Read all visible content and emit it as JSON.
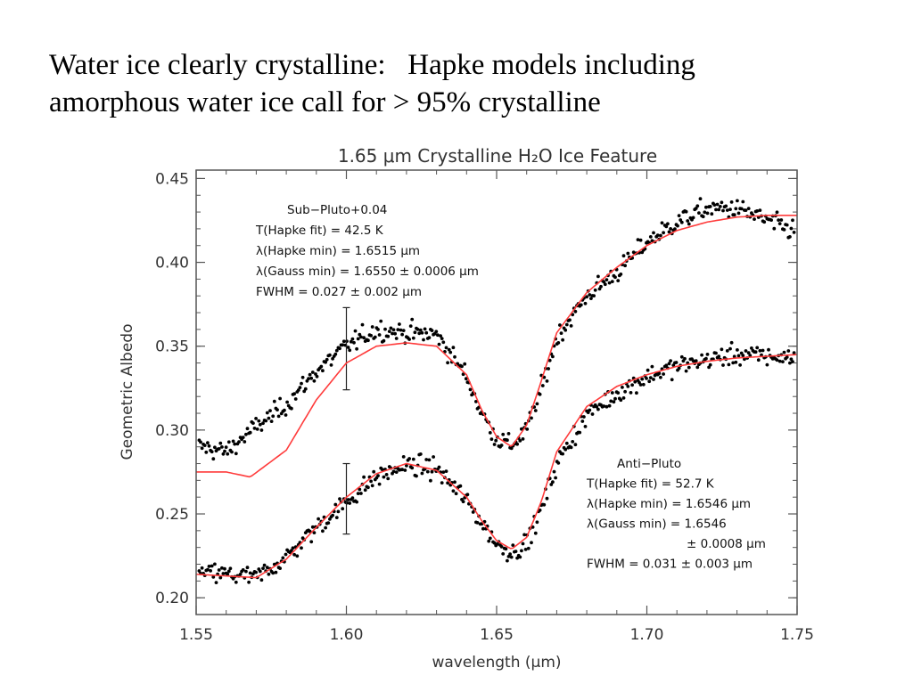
{
  "slide": {
    "title_line1": "Water ice clearly crystalline:   Hapke models including",
    "title_line2": "amorphous water ice call for > 95% crystalline"
  },
  "chart_data": {
    "type": "scatter",
    "title": "1.65 μm Crystalline H₂O Ice Feature",
    "xlabel": "wavelength (μm)",
    "ylabel": "Geometric Albedo",
    "xlim": [
      1.55,
      1.75
    ],
    "ylim": [
      0.19,
      0.455
    ],
    "xticks": [
      "1.55",
      "1.60",
      "1.65",
      "1.70",
      "1.75"
    ],
    "yticks": [
      "0.20",
      "0.25",
      "0.30",
      "0.35",
      "0.40",
      "0.45"
    ],
    "grid": false,
    "colors": {
      "data": "#000000",
      "fit": "#ff3b3b",
      "axes": "#555555"
    },
    "series": [
      {
        "name": "Sub−Pluto+0.04",
        "kind": "observed",
        "x": [
          1.552,
          1.56,
          1.57,
          1.58,
          1.59,
          1.6,
          1.61,
          1.62,
          1.63,
          1.64,
          1.645,
          1.65,
          1.655,
          1.66,
          1.665,
          1.67,
          1.68,
          1.69,
          1.7,
          1.71,
          1.72,
          1.73,
          1.74,
          1.75
        ],
        "y": [
          0.29,
          0.287,
          0.302,
          0.315,
          0.335,
          0.35,
          0.36,
          0.358,
          0.357,
          0.332,
          0.31,
          0.295,
          0.291,
          0.3,
          0.325,
          0.355,
          0.38,
          0.394,
          0.412,
          0.424,
          0.432,
          0.432,
          0.425,
          0.418
        ],
        "error_bar": {
          "x": 1.6,
          "low": 0.324,
          "high": 0.373
        }
      },
      {
        "name": "Sub−Pluto+0.04 Hapke fit",
        "kind": "model",
        "x": [
          1.55,
          1.56,
          1.568,
          1.58,
          1.59,
          1.6,
          1.61,
          1.62,
          1.63,
          1.64,
          1.645,
          1.65,
          1.655,
          1.66,
          1.665,
          1.67,
          1.68,
          1.69,
          1.7,
          1.71,
          1.72,
          1.73,
          1.74,
          1.75
        ],
        "y": [
          0.275,
          0.275,
          0.272,
          0.288,
          0.318,
          0.34,
          0.35,
          0.352,
          0.35,
          0.333,
          0.312,
          0.296,
          0.29,
          0.303,
          0.33,
          0.358,
          0.382,
          0.397,
          0.41,
          0.419,
          0.424,
          0.427,
          0.428,
          0.428
        ]
      },
      {
        "name": "Anti−Pluto",
        "kind": "observed",
        "x": [
          1.55,
          1.56,
          1.57,
          1.58,
          1.59,
          1.6,
          1.61,
          1.62,
          1.63,
          1.64,
          1.645,
          1.65,
          1.655,
          1.66,
          1.665,
          1.67,
          1.68,
          1.69,
          1.7,
          1.71,
          1.72,
          1.73,
          1.74,
          1.75
        ],
        "y": [
          0.215,
          0.214,
          0.212,
          0.224,
          0.242,
          0.257,
          0.272,
          0.279,
          0.277,
          0.258,
          0.245,
          0.232,
          0.227,
          0.232,
          0.253,
          0.28,
          0.309,
          0.322,
          0.332,
          0.338,
          0.342,
          0.345,
          0.344,
          0.343
        ],
        "error_bar": {
          "x": 1.6,
          "low": 0.238,
          "high": 0.28
        }
      },
      {
        "name": "Anti−Pluto Hapke fit",
        "kind": "model",
        "x": [
          1.55,
          1.56,
          1.57,
          1.58,
          1.59,
          1.6,
          1.61,
          1.62,
          1.63,
          1.64,
          1.645,
          1.65,
          1.655,
          1.66,
          1.665,
          1.67,
          1.68,
          1.69,
          1.7,
          1.71,
          1.72,
          1.73,
          1.74,
          1.75
        ],
        "y": [
          0.214,
          0.213,
          0.212,
          0.223,
          0.242,
          0.26,
          0.274,
          0.28,
          0.276,
          0.26,
          0.246,
          0.234,
          0.229,
          0.236,
          0.258,
          0.287,
          0.314,
          0.326,
          0.333,
          0.338,
          0.341,
          0.343,
          0.344,
          0.345
        ]
      }
    ],
    "annotations": {
      "sub_pluto": [
        "Sub−Pluto+0.04",
        "T(Hapke fit) = 42.5 K",
        "λ(Hapke min) = 1.6515 μm",
        "λ(Gauss min) = 1.6550 ± 0.0006 μm",
        "FWHM = 0.027 ± 0.002 μm"
      ],
      "anti_pluto": [
        "Anti−Pluto",
        "T(Hapke fit) = 52.7 K",
        "λ(Hapke min) = 1.6546 μm",
        "λ(Gauss min) = 1.6546",
        "± 0.0008 μm",
        "FWHM = 0.031 ± 0.003 μm"
      ]
    }
  }
}
